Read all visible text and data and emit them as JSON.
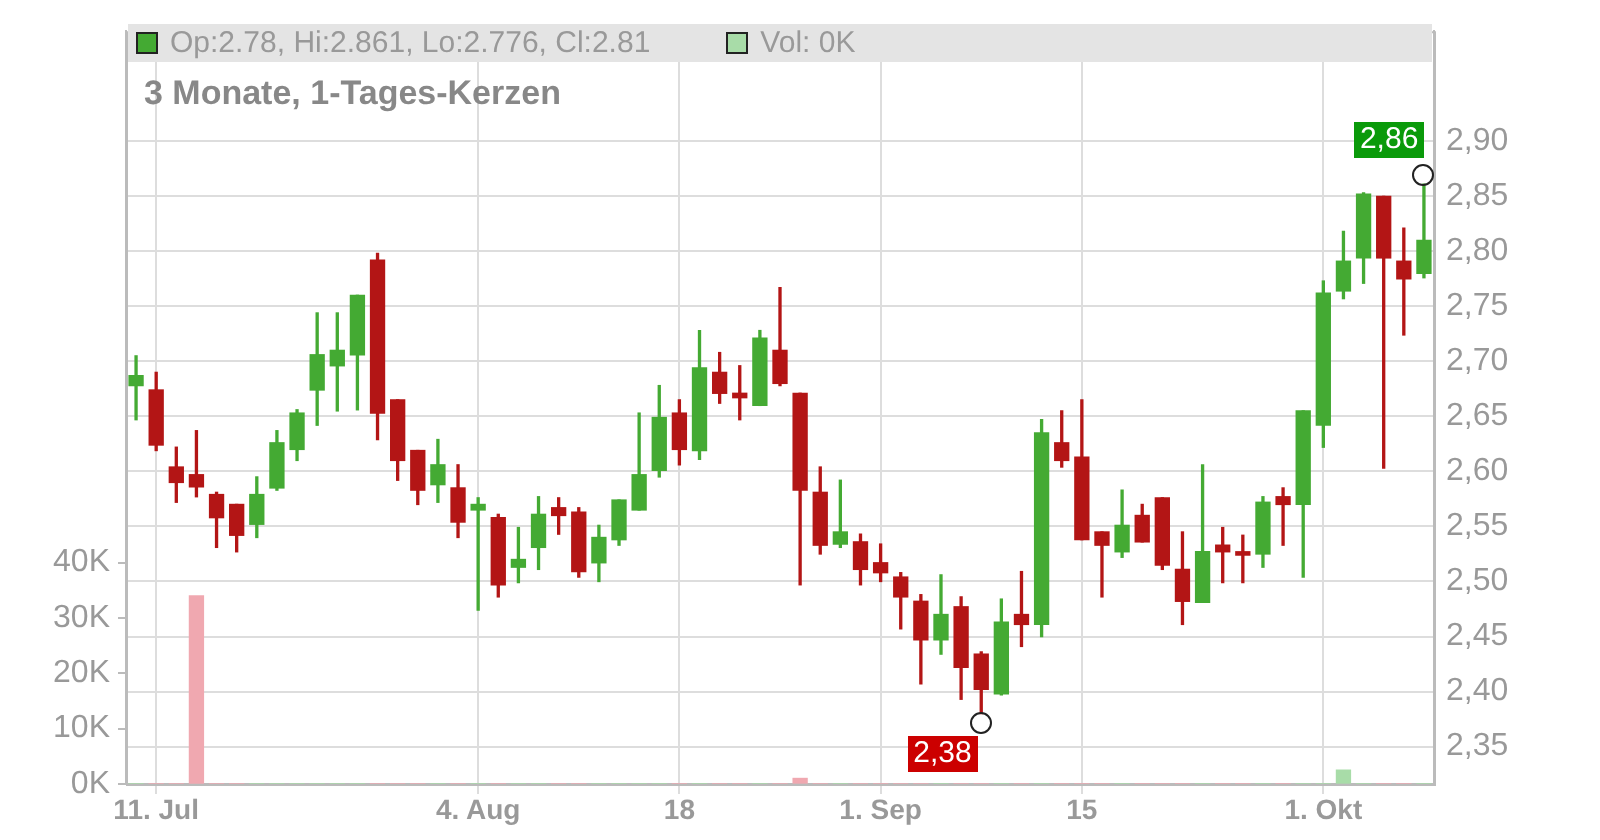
{
  "chart_data": {
    "type": "candlestick",
    "title": "3 Monate, 1-Tages-Kerzen",
    "annotations": [
      "Op:2.78, Hi:2.861, Lo:2.776, Cl:2.81",
      "Vol: 0K",
      "2,86",
      "2,38"
    ],
    "categories": [
      null,
      "11. Jul",
      null,
      null,
      null,
      null,
      null,
      null,
      null,
      null,
      null,
      null,
      null,
      null,
      null,
      null,
      null,
      "4. Aug",
      null,
      null,
      null,
      null,
      null,
      null,
      null,
      null,
      null,
      "18",
      null,
      null,
      null,
      null,
      null,
      null,
      null,
      null,
      null,
      "1. Sep",
      null,
      null,
      null,
      null,
      null,
      null,
      null,
      null,
      null,
      "15",
      null,
      null,
      null,
      null,
      null,
      null,
      null,
      null,
      null,
      null,
      null,
      "1. Okt",
      null,
      null,
      null,
      null,
      null
    ],
    "ohlc": [
      [
        2.678,
        2.705,
        2.647,
        2.687
      ],
      [
        2.674,
        2.69,
        2.619,
        2.624
      ],
      [
        2.604,
        2.622,
        2.572,
        2.59
      ],
      [
        2.597,
        2.637,
        2.577,
        2.586
      ],
      [
        2.579,
        2.581,
        2.531,
        2.558
      ],
      [
        2.57,
        2.57,
        2.527,
        2.542
      ],
      [
        2.552,
        2.595,
        2.54,
        2.579
      ],
      [
        2.585,
        2.637,
        2.583,
        2.626
      ],
      [
        2.62,
        2.656,
        2.61,
        2.653
      ],
      [
        2.674,
        2.744,
        2.642,
        2.706
      ],
      [
        2.696,
        2.744,
        2.655,
        2.71
      ],
      [
        2.706,
        2.76,
        2.656,
        2.76
      ],
      [
        2.792,
        2.798,
        2.629,
        2.653
      ],
      [
        2.665,
        2.665,
        2.592,
        2.61
      ],
      [
        2.619,
        2.619,
        2.57,
        2.583
      ],
      [
        2.588,
        2.629,
        2.572,
        2.606
      ],
      [
        2.585,
        2.606,
        2.54,
        2.554
      ],
      [
        2.565,
        2.576,
        2.474,
        2.57
      ],
      [
        2.558,
        2.561,
        2.486,
        2.497
      ],
      [
        2.513,
        2.549,
        2.499,
        2.52
      ],
      [
        2.531,
        2.577,
        2.511,
        2.561
      ],
      [
        2.567,
        2.576,
        2.543,
        2.56
      ],
      [
        2.563,
        2.567,
        2.504,
        2.509
      ],
      [
        2.517,
        2.551,
        2.5,
        2.54
      ],
      [
        2.538,
        2.574,
        2.533,
        2.574
      ],
      [
        2.565,
        2.653,
        2.565,
        2.597
      ],
      [
        2.601,
        2.678,
        2.595,
        2.649
      ],
      [
        2.653,
        2.665,
        2.606,
        2.62
      ],
      [
        2.619,
        2.728,
        2.611,
        2.694
      ],
      [
        2.69,
        2.708,
        2.662,
        2.671
      ],
      [
        2.671,
        2.696,
        2.647,
        2.667
      ],
      [
        2.66,
        2.728,
        2.66,
        2.721
      ],
      [
        2.71,
        2.767,
        2.678,
        2.68
      ],
      [
        2.671,
        2.671,
        2.497,
        2.583
      ],
      [
        2.581,
        2.604,
        2.525,
        2.533
      ],
      [
        2.534,
        2.592,
        2.531,
        2.545
      ],
      [
        2.536,
        2.543,
        2.497,
        2.511
      ],
      [
        2.517,
        2.534,
        2.5,
        2.508
      ],
      [
        2.504,
        2.508,
        2.457,
        2.486
      ],
      [
        2.482,
        2.488,
        2.407,
        2.447
      ],
      [
        2.447,
        2.506,
        2.434,
        2.47
      ],
      [
        2.477,
        2.486,
        2.393,
        2.422
      ],
      [
        2.434,
        2.436,
        2.38,
        2.402
      ],
      [
        2.398,
        2.484,
        2.397,
        2.463
      ],
      [
        2.47,
        2.509,
        2.441,
        2.461
      ],
      [
        2.461,
        2.647,
        2.45,
        2.635
      ],
      [
        2.626,
        2.655,
        2.604,
        2.61
      ],
      [
        2.613,
        2.665,
        2.538,
        2.538
      ],
      [
        2.545,
        2.545,
        2.486,
        2.533
      ],
      [
        2.527,
        2.583,
        2.522,
        2.551
      ],
      [
        2.56,
        2.57,
        2.536,
        2.536
      ],
      [
        2.576,
        2.576,
        2.511,
        2.515
      ],
      [
        2.511,
        2.545,
        2.461,
        2.482
      ],
      [
        2.481,
        2.606,
        2.481,
        2.527
      ],
      [
        2.533,
        2.549,
        2.499,
        2.527
      ],
      [
        2.527,
        2.542,
        2.499,
        2.524
      ],
      [
        2.525,
        2.577,
        2.513,
        2.572
      ],
      [
        2.577,
        2.585,
        2.533,
        2.57
      ],
      [
        2.57,
        2.655,
        2.504,
        2.655
      ],
      [
        2.642,
        2.773,
        2.622,
        2.762
      ],
      [
        2.764,
        2.818,
        2.757,
        2.791
      ],
      [
        2.794,
        2.853,
        2.771,
        2.852
      ],
      [
        2.85,
        2.85,
        2.603,
        2.794
      ],
      [
        2.791,
        2.821,
        2.724,
        2.775
      ],
      [
        2.78,
        2.861,
        2.776,
        2.81
      ]
    ],
    "colors": [
      "#44aa33",
      "#b31515",
      "#b31515",
      "#b31515",
      "#b31515",
      "#b31515",
      "#44aa33",
      "#44aa33",
      "#44aa33",
      "#44aa33",
      "#44aa33",
      "#44aa33",
      "#b31515",
      "#b31515",
      "#b31515",
      "#44aa33",
      "#b31515",
      "#44aa33",
      "#b31515",
      "#44aa33",
      "#44aa33",
      "#b31515",
      "#b31515",
      "#44aa33",
      "#44aa33",
      "#44aa33",
      "#44aa33",
      "#b31515",
      "#44aa33",
      "#b31515",
      "#b31515",
      "#44aa33",
      "#b31515",
      "#b31515",
      "#b31515",
      "#44aa33",
      "#b31515",
      "#b31515",
      "#b31515",
      "#b31515",
      "#44aa33",
      "#b31515",
      "#b31515",
      "#44aa33",
      "#b31515",
      "#44aa33",
      "#b31515",
      "#b31515",
      "#b31515",
      "#44aa33",
      "#b31515",
      "#b31515",
      "#b31515",
      "#44aa33",
      "#b31515",
      "#b31515",
      "#44aa33",
      "#b31515",
      "#44aa33",
      "#44aa33",
      "#44aa33",
      "#44aa33",
      "#b31515",
      "#b31515",
      "#44aa33"
    ],
    "series": [
      {
        "type": "bar",
        "axis": "y2",
        "values": [
          0,
          0,
          0,
          34000,
          0,
          0,
          0,
          0,
          0,
          0,
          0,
          0,
          0,
          0,
          0,
          0,
          0,
          0,
          0,
          0,
          0,
          0,
          0,
          0,
          0,
          0,
          0,
          0,
          0,
          0,
          0,
          0,
          0,
          1000,
          0,
          0,
          0,
          0,
          0,
          0,
          0,
          0,
          0,
          0,
          0,
          0,
          0,
          0,
          0,
          0,
          0,
          0,
          0,
          0,
          0,
          0,
          0,
          0,
          0,
          0,
          2500,
          0,
          0,
          0,
          0
        ],
        "colors": [
          "#a8dca8",
          "#f0a8b0",
          "#f0a8b0",
          "#f0a8b0",
          "#f0a8b0",
          "#f0a8b0",
          "#a8dca8",
          "#a8dca8",
          "#a8dca8",
          "#a8dca8",
          "#a8dca8",
          "#a8dca8",
          "#f0a8b0",
          "#f0a8b0",
          "#f0a8b0",
          "#a8dca8",
          "#f0a8b0",
          "#a8dca8",
          "#f0a8b0",
          "#a8dca8",
          "#a8dca8",
          "#f0a8b0",
          "#f0a8b0",
          "#a8dca8",
          "#a8dca8",
          "#a8dca8",
          "#a8dca8",
          "#f0a8b0",
          "#a8dca8",
          "#f0a8b0",
          "#f0a8b0",
          "#a8dca8",
          "#f0a8b0",
          "#f0a8b0",
          "#f0a8b0",
          "#a8dca8",
          "#f0a8b0",
          "#f0a8b0",
          "#f0a8b0",
          "#f0a8b0",
          "#a8dca8",
          "#f0a8b0",
          "#f0a8b0",
          "#a8dca8",
          "#f0a8b0",
          "#a8dca8",
          "#f0a8b0",
          "#f0a8b0",
          "#f0a8b0",
          "#a8dca8",
          "#f0a8b0",
          "#f0a8b0",
          "#f0a8b0",
          "#a8dca8",
          "#f0a8b0",
          "#f0a8b0",
          "#a8dca8",
          "#f0a8b0",
          "#a8dca8",
          "#a8dca8",
          "#a8dca8",
          "#a8dca8",
          "#f0a8b0",
          "#f0a8b0",
          "#a8dca8"
        ]
      }
    ],
    "ylim": [
      2.316,
      3.0
    ],
    "yticks": [
      {
        "value": 2.35,
        "label": "2,35"
      },
      {
        "value": 2.4,
        "label": "2,40"
      },
      {
        "value": 2.45,
        "label": "2,45"
      },
      {
        "value": 2.5,
        "label": "2,50"
      },
      {
        "value": 2.55,
        "label": "2,55"
      },
      {
        "value": 2.6,
        "label": "2,60"
      },
      {
        "value": 2.65,
        "label": "2,65"
      },
      {
        "value": 2.7,
        "label": "2,70"
      },
      {
        "value": 2.75,
        "label": "2,75"
      },
      {
        "value": 2.8,
        "label": "2,80"
      },
      {
        "value": 2.85,
        "label": "2,85"
      },
      {
        "value": 2.9,
        "label": "2,90"
      }
    ],
    "y2lim": [
      0,
      136000
    ],
    "y2ticks": [
      {
        "value": 0,
        "label": "0K"
      },
      {
        "value": 10000,
        "label": "10K"
      },
      {
        "value": 20000,
        "label": "20K"
      },
      {
        "value": 30000,
        "label": "30K"
      },
      {
        "value": 40000,
        "label": "40K"
      }
    ],
    "grid": true,
    "legend": false
  }
}
